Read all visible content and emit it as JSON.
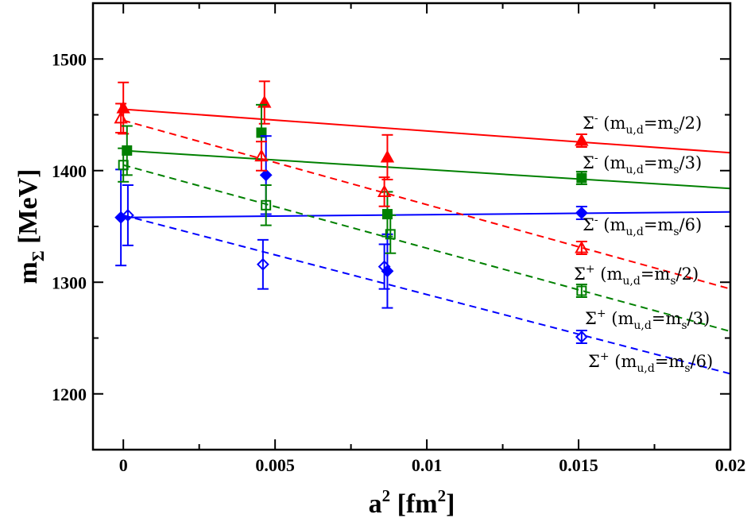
{
  "chart_data": {
    "type": "scatter",
    "title": "",
    "xlabel": "a",
    "xlabel_sup": "2",
    "xlabel_unit_open": " [fm",
    "xlabel_unit_sup": "2",
    "xlabel_unit_close": "]",
    "ylabel": "m",
    "ylabel_sub": "Σ",
    "ylabel_unit": " [MeV]",
    "xlim": [
      -0.001,
      0.02
    ],
    "ylim": [
      1150,
      1550
    ],
    "xticks": [
      0,
      0.005,
      0.01,
      0.015,
      0.02
    ],
    "xtick_labels": [
      "0",
      "0.005",
      "0.01",
      "0.015",
      "0.02"
    ],
    "yticks": [
      1200,
      1300,
      1400,
      1500
    ],
    "ytick_labels": [
      "1200",
      "1300",
      "1400",
      "1500"
    ],
    "grid": false,
    "legend_position": "right",
    "series": [
      {
        "name": "Σ- (mu,d=ms/2)",
        "legend_sym": "Σ",
        "legend_sign": "-",
        "legend_body": "(m",
        "legend_sub1": "u,d",
        "legend_mid": "=m",
        "legend_sub2": "s",
        "legend_tail": "/2)",
        "color": "#ff0000",
        "marker": "triangle",
        "filled": true,
        "dash": false,
        "points": [
          {
            "x": 0.0,
            "y": 1456,
            "err": 23
          },
          {
            "x": 0.00465,
            "y": 1461,
            "err": 19
          },
          {
            "x": 0.0087,
            "y": 1412,
            "err": 20
          }
        ],
        "fit": [
          1455,
          1416
        ]
      },
      {
        "name": "Σ- (mu,d=ms/3)",
        "legend_sym": "Σ",
        "legend_sign": "-",
        "legend_body": "(m",
        "legend_sub1": "u,d",
        "legend_mid": "=m",
        "legend_sub2": "s",
        "legend_tail": "/3)",
        "color": "#008000",
        "marker": "square",
        "filled": true,
        "dash": false,
        "points": [
          {
            "x": 0.00012,
            "y": 1418,
            "err": 22
          },
          {
            "x": 0.00455,
            "y": 1434,
            "err": 25
          },
          {
            "x": 0.0087,
            "y": 1361,
            "err": 20
          }
        ],
        "fit": [
          1418,
          1384
        ]
      },
      {
        "name": "Σ- (mu,d=ms/6)",
        "legend_sym": "Σ",
        "legend_sign": "-",
        "legend_body": "(m",
        "legend_sub1": "u,d",
        "legend_mid": "=m",
        "legend_sub2": "s",
        "legend_tail": "/6)",
        "color": "#0000ff",
        "marker": "diamond",
        "filled": true,
        "dash": false,
        "points": [
          {
            "x": -8e-05,
            "y": 1358,
            "err": 43
          },
          {
            "x": 0.0047,
            "y": 1396,
            "err": 35
          },
          {
            "x": 0.0087,
            "y": 1310,
            "err": 33
          }
        ],
        "fit": [
          1358,
          1363
        ]
      },
      {
        "name": "Σ+ (mu,d=ms/2)",
        "legend_sym": "Σ",
        "legend_sign": "+",
        "legend_body": "(m",
        "legend_sub1": "u,d",
        "legend_mid": "=m",
        "legend_sub2": "s",
        "legend_tail": "/2)",
        "color": "#ff0000",
        "marker": "triangle",
        "filled": false,
        "dash": true,
        "points": [
          {
            "x": -8e-05,
            "y": 1447,
            "err": 13
          },
          {
            "x": 0.00455,
            "y": 1413,
            "err": 13
          },
          {
            "x": 0.0086,
            "y": 1381,
            "err": 13
          }
        ],
        "fit": [
          1445,
          1294
        ]
      },
      {
        "name": "Σ+ (mu,d=ms/3)",
        "legend_sym": "Σ",
        "legend_sign": "+",
        "legend_body": "(m",
        "legend_sub1": "u,d",
        "legend_mid": "=m",
        "legend_sub2": "s",
        "legend_tail": "/3)",
        "color": "#008000",
        "marker": "square",
        "filled": false,
        "dash": true,
        "points": [
          {
            "x": 0.0,
            "y": 1405,
            "err": 15
          },
          {
            "x": 0.0047,
            "y": 1369,
            "err": 18
          },
          {
            "x": 0.0088,
            "y": 1343,
            "err": 17
          }
        ],
        "fit": [
          1405,
          1256
        ]
      },
      {
        "name": "Σ+ (mu,d=ms/6)",
        "legend_sym": "Σ",
        "legend_sign": "+",
        "legend_body": "(m",
        "legend_sub1": "u,d",
        "legend_mid": "=m",
        "legend_sub2": "s",
        "legend_tail": "/6)",
        "color": "#0000ff",
        "marker": "diamond",
        "filled": false,
        "dash": true,
        "points": [
          {
            "x": 0.00015,
            "y": 1360,
            "err": 27
          },
          {
            "x": 0.0046,
            "y": 1316,
            "err": 22
          },
          {
            "x": 0.0086,
            "y": 1314,
            "err": 20
          }
        ],
        "fit": [
          1360,
          1218
        ]
      }
    ]
  }
}
